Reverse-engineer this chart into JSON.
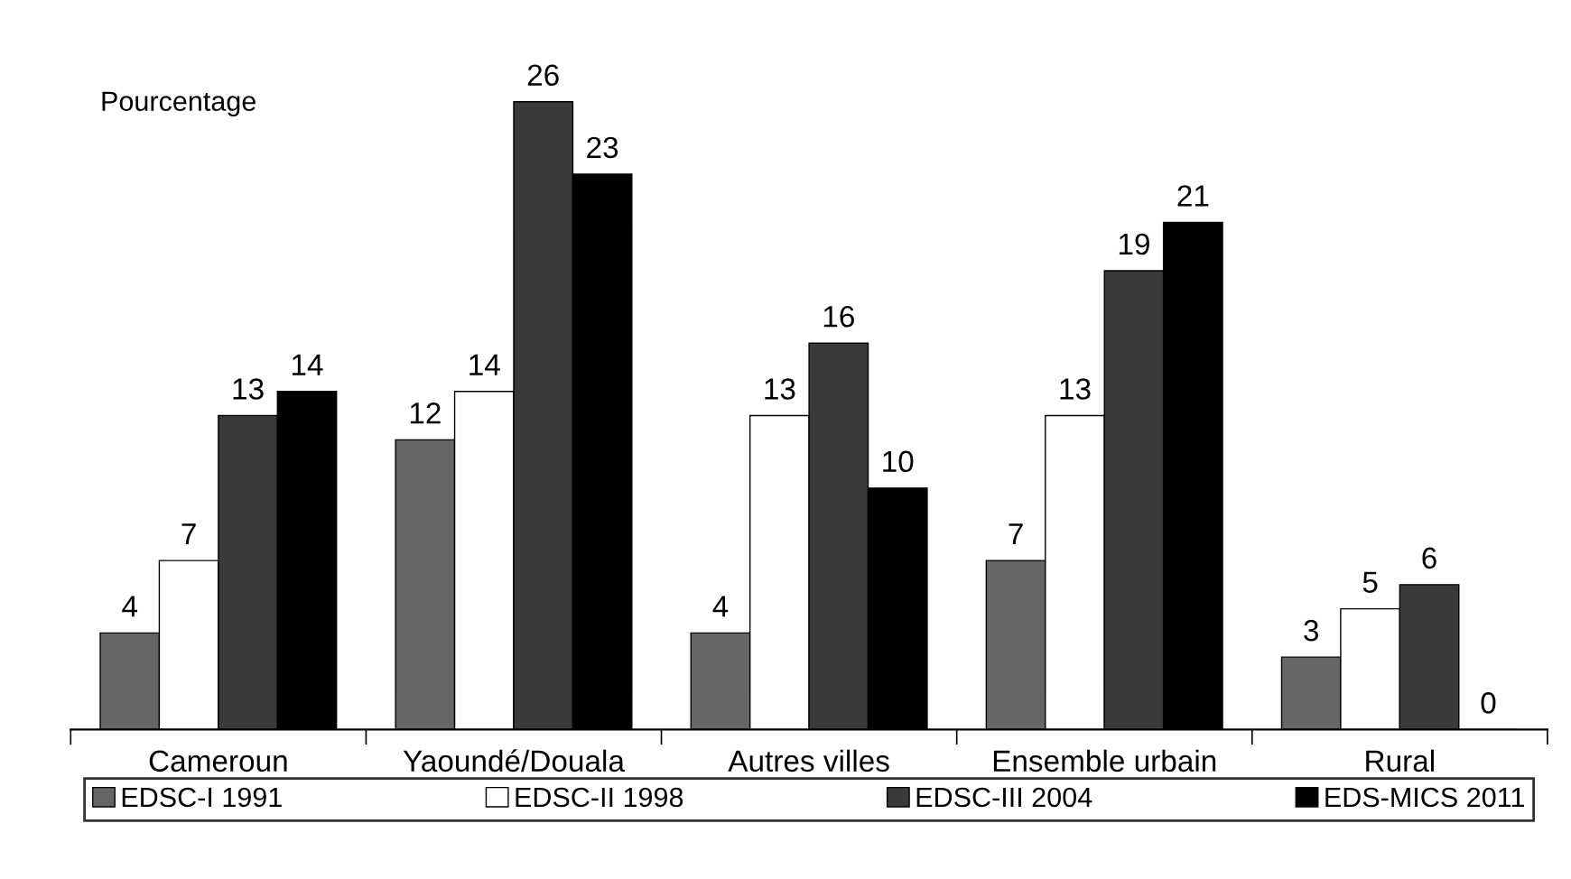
{
  "chart_data": {
    "type": "bar",
    "ylabel": "Pourcentage",
    "categories": [
      "Cameroun",
      "Yaoundé/Douala",
      "Autres villes",
      "Ensemble urbain",
      "Rural"
    ],
    "series": [
      {
        "name": "EDSC-I 1991",
        "color": "#666666",
        "values": [
          4,
          12,
          4,
          7,
          3
        ]
      },
      {
        "name": "EDSC-II 1998",
        "color": "#ffffff",
        "values": [
          7,
          14,
          13,
          13,
          5
        ]
      },
      {
        "name": "EDSC-III 2004",
        "color": "#3a3a3a",
        "values": [
          13,
          26,
          16,
          19,
          6
        ]
      },
      {
        "name": "EDS-MICS 2011",
        "color": "#000000",
        "values": [
          14,
          23,
          10,
          21,
          0
        ]
      }
    ],
    "data_labels": true,
    "grid": false,
    "legend": "bottom"
  }
}
